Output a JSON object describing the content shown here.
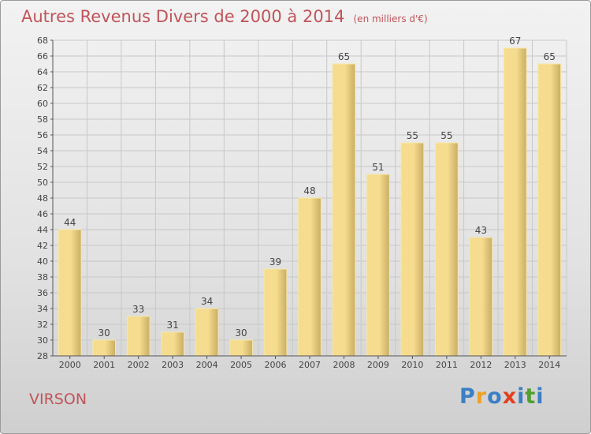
{
  "title": "Autres Revenus Divers de 2000 à 2014",
  "subtitle": "(en milliers d'€)",
  "commune": "VIRSON",
  "logo": {
    "letters": [
      "P",
      "r",
      "o",
      "x",
      "i",
      "t",
      "i"
    ],
    "colors": [
      "#3b7fc4",
      "#f0a020",
      "#3b7fc4",
      "#e04020",
      "#3b7fc4",
      "#50a030",
      "#3b7fc4"
    ]
  },
  "colors": {
    "title": "#c0545a",
    "bar_light": "#f5dc8e",
    "bar_dark": "#c9ad64",
    "grid": "#c8c8c8"
  },
  "chart_data": {
    "type": "bar",
    "categories": [
      "2000",
      "2001",
      "2002",
      "2003",
      "2004",
      "2005",
      "2006",
      "2007",
      "2008",
      "2009",
      "2010",
      "2011",
      "2012",
      "2013",
      "2014"
    ],
    "values": [
      44,
      30,
      33,
      31,
      34,
      30,
      39,
      48,
      65,
      51,
      55,
      55,
      43,
      67,
      65
    ],
    "title": "Autres Revenus Divers de 2000 à 2014",
    "xlabel": "",
    "ylabel": "",
    "ylim": [
      28,
      68
    ],
    "yticks": [
      28,
      30,
      32,
      34,
      36,
      38,
      40,
      42,
      44,
      46,
      48,
      50,
      52,
      54,
      56,
      58,
      60,
      62,
      64,
      66,
      68
    ],
    "grid": true,
    "legend": "none"
  }
}
